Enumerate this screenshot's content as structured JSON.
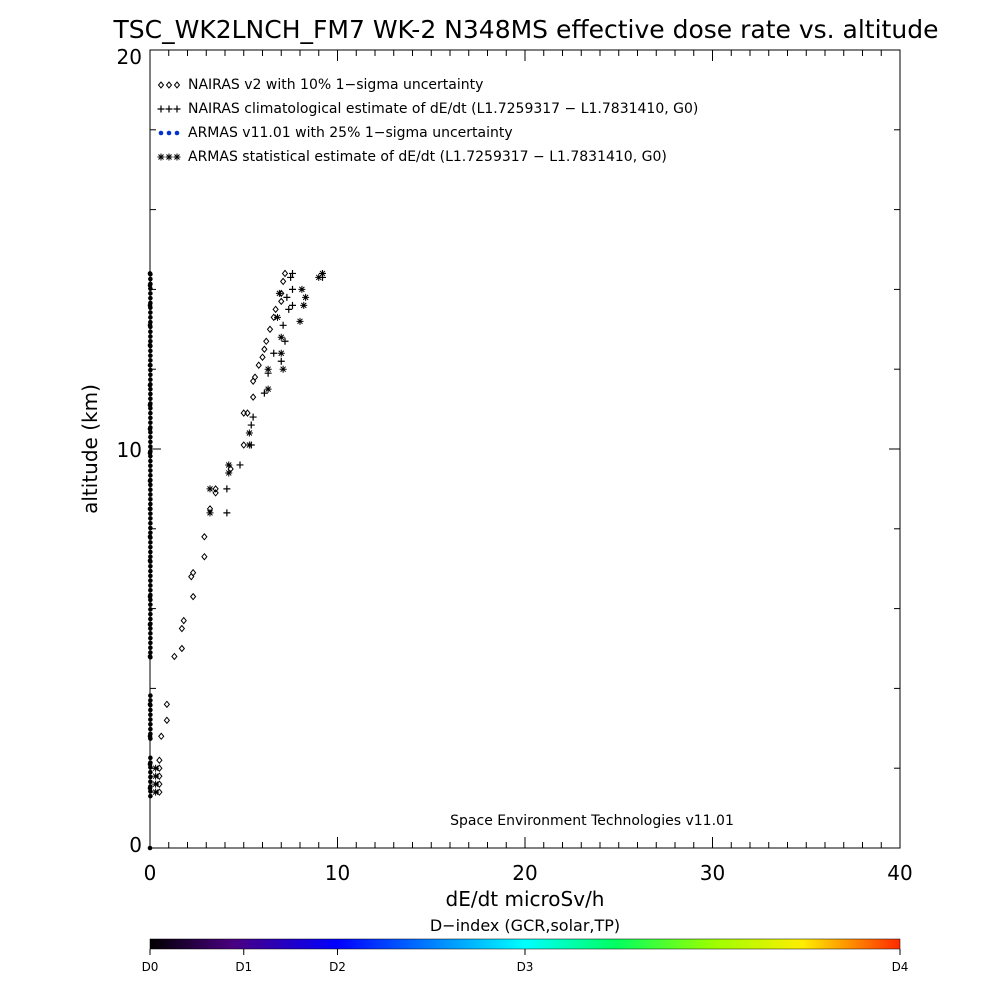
{
  "chart_data": {
    "type": "scatter",
    "title": "TSC_WK2LNCH_FM7 WK-2 N348MS effective dose rate vs. altitude",
    "xlabel": "dE/dt microSv/h",
    "ylabel": "altitude (km)",
    "xlim": [
      0,
      40
    ],
    "ylim": [
      0,
      20
    ],
    "x_ticks": [
      "0",
      "10",
      "20",
      "30",
      "40"
    ],
    "y_ticks": [
      "0",
      "10",
      "20"
    ],
    "grid": false,
    "legend_position": "top-left",
    "footer": "Space Environment Technologies v11.01",
    "colorbar": {
      "title": "D−index (GCR,solar,TP)",
      "labels": [
        "D0",
        "D1",
        "D2",
        "D3",
        "D4"
      ],
      "label_positions": [
        0,
        0.125,
        0.25,
        0.5,
        1.0
      ]
    },
    "series": [
      {
        "name": "NAIRAS v2 with 10% 1−sigma uncertainty",
        "marker": "diamond",
        "color": "#000000",
        "points": [
          [
            0.5,
            1.4
          ],
          [
            0.5,
            1.6
          ],
          [
            0.5,
            1.8
          ],
          [
            0.5,
            2.0
          ],
          [
            0.5,
            2.2
          ],
          [
            0.6,
            2.8
          ],
          [
            0.9,
            3.2
          ],
          [
            0.9,
            3.6
          ],
          [
            1.3,
            4.8
          ],
          [
            1.7,
            5.0
          ],
          [
            1.7,
            5.5
          ],
          [
            1.8,
            5.7
          ],
          [
            2.3,
            6.3
          ],
          [
            2.2,
            6.8
          ],
          [
            2.3,
            6.9
          ],
          [
            2.9,
            7.3
          ],
          [
            2.9,
            7.8
          ],
          [
            3.2,
            8.5
          ],
          [
            3.5,
            8.9
          ],
          [
            3.5,
            9.0
          ],
          [
            4.3,
            9.5
          ],
          [
            5.0,
            10.1
          ],
          [
            5.0,
            10.9
          ],
          [
            5.2,
            10.9
          ],
          [
            5.5,
            11.3
          ],
          [
            5.5,
            11.7
          ],
          [
            5.6,
            11.8
          ],
          [
            5.8,
            12.1
          ],
          [
            6.0,
            12.3
          ],
          [
            6.1,
            12.5
          ],
          [
            6.2,
            12.7
          ],
          [
            6.4,
            13.0
          ],
          [
            6.6,
            13.3
          ],
          [
            6.7,
            13.5
          ],
          [
            7.0,
            13.7
          ],
          [
            7.0,
            13.9
          ],
          [
            7.1,
            14.2
          ],
          [
            7.2,
            14.4
          ]
        ]
      },
      {
        "name": "NAIRAS climatological estimate of dE/dt (L1.7259317 − L1.7831410, G0)",
        "marker": "plus",
        "color": "#000000",
        "points": [
          [
            4.1,
            8.4
          ],
          [
            4.1,
            9.0
          ],
          [
            4.8,
            9.6
          ],
          [
            5.4,
            10.1
          ],
          [
            5.4,
            10.6
          ],
          [
            5.5,
            10.8
          ],
          [
            6.1,
            11.4
          ],
          [
            6.3,
            11.9
          ],
          [
            6.6,
            12.4
          ],
          [
            7.0,
            12.2
          ],
          [
            7.2,
            12.7
          ],
          [
            7.1,
            13.1
          ],
          [
            7.4,
            13.5
          ],
          [
            7.6,
            13.6
          ],
          [
            7.3,
            13.8
          ],
          [
            7.6,
            14.0
          ],
          [
            7.5,
            14.3
          ],
          [
            7.6,
            14.4
          ],
          [
            9.2,
            14.3
          ],
          [
            9.2,
            14.4
          ]
        ]
      },
      {
        "name": "ARMAS v11.01 with 25% 1−sigma uncertainty",
        "marker": "dot",
        "color": "#0033cc",
        "points": [
          [
            0.0,
            0.0
          ],
          [
            0.0,
            1.5
          ],
          [
            0.0,
            2.1
          ],
          [
            0.0,
            2.8
          ],
          [
            0.0,
            3.6
          ],
          [
            0.0,
            4.8
          ],
          [
            0.0,
            5.6
          ],
          [
            0.0,
            6.3
          ],
          [
            0.0,
            7.2
          ],
          [
            0.0,
            7.8
          ],
          [
            0.0,
            8.5
          ],
          [
            0.0,
            9.2
          ],
          [
            0.0,
            9.9
          ],
          [
            0.0,
            10.5
          ],
          [
            0.0,
            11.1
          ],
          [
            0.0,
            11.6
          ],
          [
            0.0,
            12.1
          ],
          [
            0.0,
            12.6
          ],
          [
            0.0,
            13.1
          ],
          [
            0.0,
            13.6
          ],
          [
            0.0,
            14.1
          ],
          [
            0.0,
            14.4
          ]
        ]
      },
      {
        "name": "ARMAS statistical estimate of dE/dt (L1.7259317 − L1.7831410, G0)",
        "marker": "asterisk",
        "color": "#000000",
        "points": [
          [
            0.3,
            1.4
          ],
          [
            0.3,
            1.6
          ],
          [
            0.3,
            1.8
          ],
          [
            0.3,
            2.0
          ],
          [
            3.2,
            8.4
          ],
          [
            3.2,
            9.0
          ],
          [
            4.2,
            9.4
          ],
          [
            4.2,
            9.6
          ],
          [
            5.3,
            10.1
          ],
          [
            5.3,
            10.4
          ],
          [
            6.3,
            11.5
          ],
          [
            6.3,
            12.0
          ],
          [
            7.1,
            12.0
          ],
          [
            7.0,
            12.4
          ],
          [
            7.0,
            12.8
          ],
          [
            6.8,
            13.3
          ],
          [
            8.0,
            13.2
          ],
          [
            8.2,
            13.6
          ],
          [
            8.3,
            13.8
          ],
          [
            8.1,
            14.0
          ],
          [
            6.9,
            13.9
          ],
          [
            9.0,
            14.3
          ],
          [
            9.2,
            14.4
          ]
        ]
      }
    ]
  }
}
